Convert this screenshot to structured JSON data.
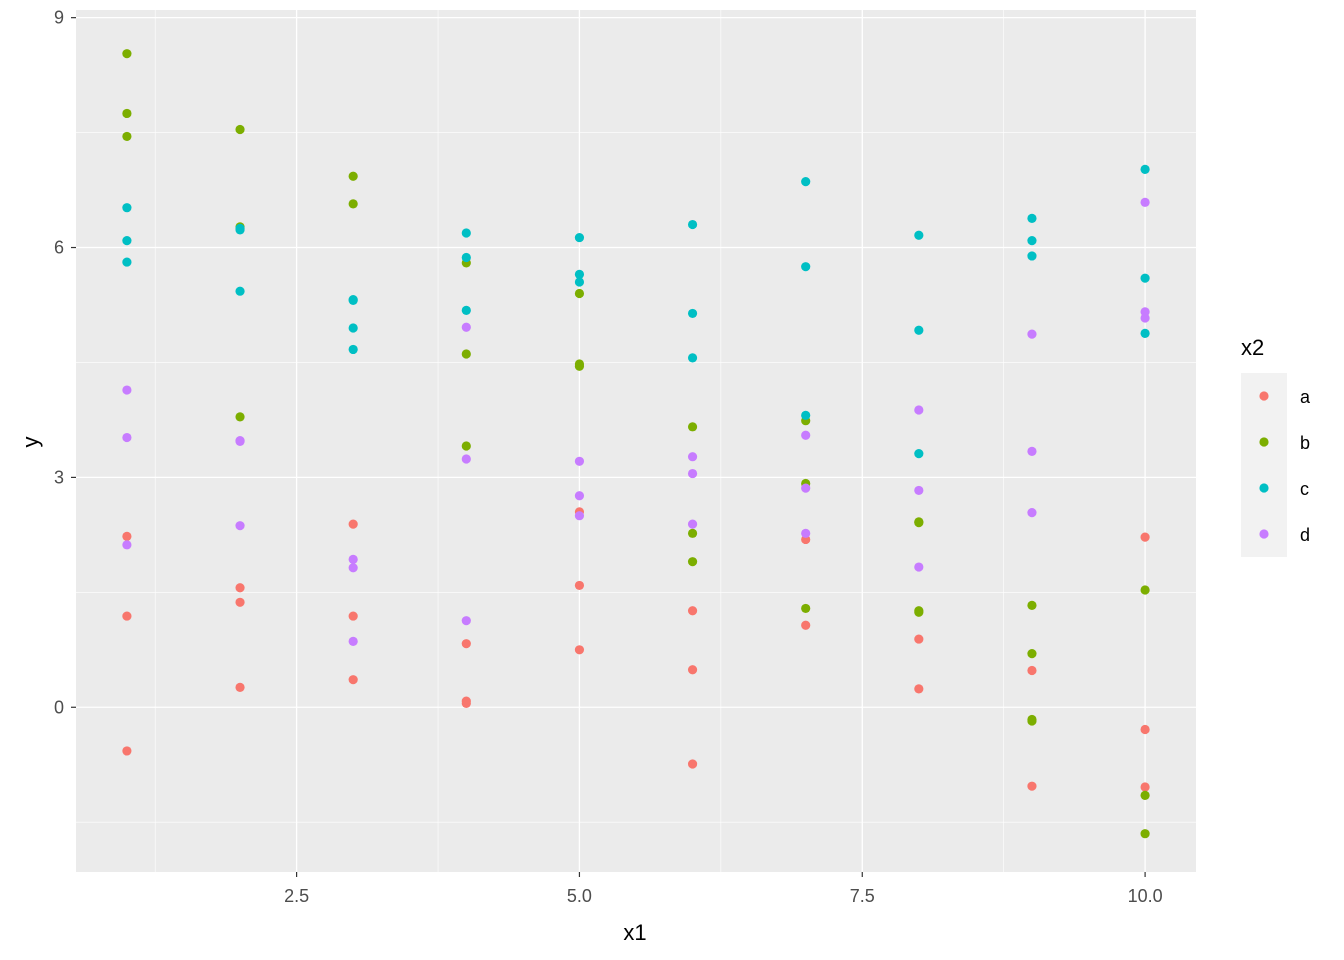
{
  "chart_data": {
    "type": "scatter",
    "xlabel": "x1",
    "ylabel": "y",
    "xlim": [
      0.55,
      10.45
    ],
    "ylim": [
      -2.15,
      9.1
    ],
    "x_ticks": [
      2.5,
      5.0,
      7.5,
      10.0
    ],
    "x_tick_labels": [
      "2.5",
      "5.0",
      "7.5",
      "10.0"
    ],
    "y_ticks": [
      0,
      3,
      6,
      9
    ],
    "y_tick_labels": [
      "0",
      "3",
      "6",
      "9"
    ],
    "grid": true,
    "background": "#ebebeb",
    "legend": {
      "title": "x2",
      "position": "right"
    },
    "series": [
      {
        "name": "a",
        "color": "#f8766d",
        "points": [
          [
            1,
            2.23
          ],
          [
            1,
            1.19
          ],
          [
            1,
            -0.57
          ],
          [
            2,
            1.56
          ],
          [
            2,
            1.37
          ],
          [
            2,
            0.26
          ],
          [
            3,
            2.39
          ],
          [
            3,
            1.19
          ],
          [
            3,
            0.36
          ],
          [
            4,
            0.83
          ],
          [
            4,
            0.08
          ],
          [
            4,
            0.05
          ],
          [
            5,
            2.55
          ],
          [
            5,
            1.59
          ],
          [
            5,
            0.75
          ],
          [
            6,
            1.26
          ],
          [
            6,
            0.49
          ],
          [
            6,
            -0.74
          ],
          [
            7,
            2.19
          ],
          [
            7,
            1.07
          ],
          [
            8,
            0.89
          ],
          [
            8,
            0.24
          ],
          [
            9,
            0.48
          ],
          [
            9,
            -1.03
          ],
          [
            10,
            2.22
          ],
          [
            10,
            -0.29
          ],
          [
            10,
            -1.04
          ]
        ]
      },
      {
        "name": "b",
        "color": "#7cae00",
        "points": [
          [
            1,
            8.53
          ],
          [
            1,
            7.75
          ],
          [
            1,
            7.45
          ],
          [
            2,
            7.54
          ],
          [
            2,
            6.27
          ],
          [
            2,
            3.79
          ],
          [
            3,
            6.93
          ],
          [
            3,
            6.57
          ],
          [
            4,
            5.8
          ],
          [
            4,
            4.61
          ],
          [
            4,
            3.41
          ],
          [
            5,
            5.4
          ],
          [
            5,
            4.48
          ],
          [
            5,
            4.45
          ],
          [
            6,
            3.66
          ],
          [
            6,
            2.27
          ],
          [
            6,
            1.9
          ],
          [
            7,
            3.74
          ],
          [
            7,
            2.92
          ],
          [
            7,
            1.29
          ],
          [
            8,
            2.42
          ],
          [
            8,
            2.41
          ],
          [
            8,
            1.26
          ],
          [
            8,
            1.24
          ],
          [
            9,
            1.33
          ],
          [
            9,
            0.7
          ],
          [
            9,
            -0.16
          ],
          [
            9,
            -0.18
          ],
          [
            10,
            1.53
          ],
          [
            10,
            -1.15
          ],
          [
            10,
            -1.65
          ]
        ]
      },
      {
        "name": "c",
        "color": "#00bfc4",
        "points": [
          [
            1,
            6.52
          ],
          [
            1,
            6.09
          ],
          [
            1,
            5.81
          ],
          [
            2,
            6.25
          ],
          [
            2,
            6.23
          ],
          [
            2,
            5.43
          ],
          [
            3,
            5.32
          ],
          [
            3,
            5.31
          ],
          [
            3,
            4.95
          ],
          [
            3,
            4.67
          ],
          [
            4,
            6.19
          ],
          [
            4,
            5.87
          ],
          [
            4,
            5.18
          ],
          [
            5,
            6.13
          ],
          [
            5,
            5.65
          ],
          [
            5,
            5.55
          ],
          [
            6,
            6.3
          ],
          [
            6,
            5.14
          ],
          [
            6,
            4.56
          ],
          [
            7,
            6.86
          ],
          [
            7,
            5.75
          ],
          [
            7,
            3.81
          ],
          [
            8,
            6.16
          ],
          [
            8,
            4.92
          ],
          [
            8,
            3.31
          ],
          [
            9,
            6.38
          ],
          [
            9,
            6.09
          ],
          [
            9,
            5.89
          ],
          [
            10,
            7.02
          ],
          [
            10,
            5.6
          ],
          [
            10,
            4.88
          ]
        ]
      },
      {
        "name": "d",
        "color": "#c77cff",
        "points": [
          [
            1,
            4.14
          ],
          [
            1,
            3.52
          ],
          [
            1,
            2.12
          ],
          [
            2,
            3.48
          ],
          [
            2,
            3.47
          ],
          [
            2,
            2.37
          ],
          [
            3,
            1.93
          ],
          [
            3,
            1.82
          ],
          [
            3,
            0.86
          ],
          [
            4,
            4.96
          ],
          [
            4,
            3.24
          ],
          [
            4,
            1.13
          ],
          [
            5,
            3.21
          ],
          [
            5,
            2.76
          ],
          [
            5,
            2.5
          ],
          [
            6,
            3.27
          ],
          [
            6,
            3.05
          ],
          [
            6,
            2.39
          ],
          [
            7,
            3.55
          ],
          [
            7,
            2.86
          ],
          [
            7,
            2.27
          ],
          [
            8,
            3.88
          ],
          [
            8,
            2.83
          ],
          [
            8,
            1.83
          ],
          [
            9,
            4.87
          ],
          [
            9,
            3.34
          ],
          [
            9,
            2.54
          ],
          [
            10,
            6.59
          ],
          [
            10,
            5.16
          ],
          [
            10,
            5.08
          ]
        ]
      }
    ]
  }
}
